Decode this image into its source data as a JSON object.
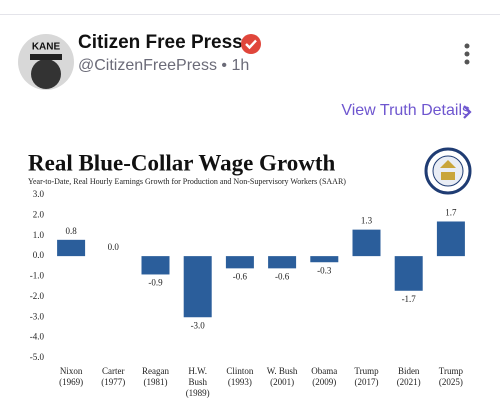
{
  "post": {
    "author": "Citizen Free Press",
    "handle": "@CitizenFreePress",
    "separator": "•",
    "time": "1h",
    "link": "View Truth Details",
    "avatar_text": "KANE"
  },
  "chart_data": {
    "type": "bar",
    "title": "Real Blue-Collar Wage Growth",
    "subtitle": "Year-to-Date, Real Hourly Earnings Growth for Production and Non-Supervisory Workers (SAAR)",
    "categories": [
      [
        "Nixon",
        "(1969)"
      ],
      [
        "Carter",
        "(1977)"
      ],
      [
        "Reagan",
        "(1981)"
      ],
      [
        "H.W.",
        "Bush",
        "(1989)"
      ],
      [
        "Clinton",
        "(1993)"
      ],
      [
        "W. Bush",
        "(2001)"
      ],
      [
        "Obama",
        "(2009)"
      ],
      [
        "Trump",
        "(2017)"
      ],
      [
        "Biden",
        "(2021)"
      ],
      [
        "Trump",
        "(2025)"
      ]
    ],
    "values": [
      0.8,
      0,
      -0.9,
      -3,
      -0.6,
      -0.6,
      -0.3,
      1.3,
      -1.7,
      1.7
    ],
    "value_labels": [
      "0.8",
      "0.0",
      "-0.9",
      "-3.0",
      "-0.6",
      "-0.6",
      "-0.3",
      "1.3",
      "-1.7",
      "1.7"
    ],
    "color": "#2b5e9b",
    "ylim": [
      -5,
      3
    ],
    "yticks": [
      {
        "value": 3,
        "label": "3.0"
      },
      {
        "value": 2,
        "label": "2.0"
      },
      {
        "value": 1,
        "label": "1.0"
      },
      {
        "value": 0,
        "label": "0.0"
      },
      {
        "value": -1,
        "label": "-1.0"
      },
      {
        "value": -2,
        "label": "-2.0"
      },
      {
        "value": -3,
        "label": "-3.0"
      },
      {
        "value": -4,
        "label": "-4.0"
      },
      {
        "value": -5,
        "label": "-5.0"
      }
    ],
    "grid": false
  }
}
